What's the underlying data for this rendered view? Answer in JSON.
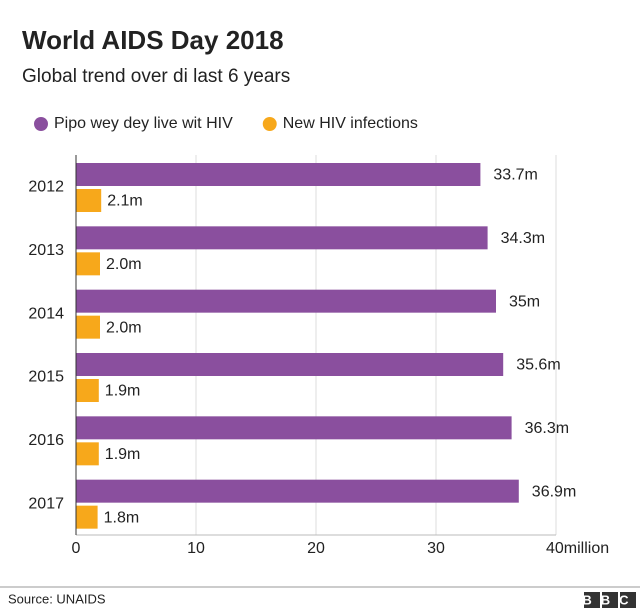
{
  "chart_data": {
    "type": "bar",
    "orientation": "horizontal",
    "title": "World AIDS Day 2018",
    "subtitle": "Global trend over di last 6 years",
    "categories": [
      "2012",
      "2013",
      "2014",
      "2015",
      "2016",
      "2017"
    ],
    "series": [
      {
        "name": "Pipo wey dey live wit HIV",
        "color": "#8a4f9e",
        "values": [
          33.7,
          34.3,
          35,
          35.6,
          36.3,
          36.9
        ],
        "value_labels": [
          "33.7m",
          "34.3m",
          "35m",
          "35.6m",
          "36.3m",
          "36.9m"
        ]
      },
      {
        "name": "New HIV infections",
        "color": "#f7a81b",
        "values": [
          2.1,
          2.0,
          2.0,
          1.9,
          1.9,
          1.8
        ],
        "value_labels": [
          "2.1m",
          "2.0m",
          "2.0m",
          "1.9m",
          "1.9m",
          "1.8m"
        ]
      }
    ],
    "xlim": [
      0,
      40
    ],
    "xticks": [
      0,
      10,
      20,
      30,
      {
        "value": 40,
        "label": "40million"
      }
    ],
    "grid": true,
    "source": "Source: UNAIDS",
    "logo": "BBC"
  }
}
